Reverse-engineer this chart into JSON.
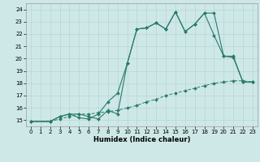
{
  "xlabel": "Humidex (Indice chaleur)",
  "bg_color": "#cee8e8",
  "grid_color": "#b8d4d4",
  "line_color": "#2a7a6a",
  "xlim": [
    -0.5,
    23.5
  ],
  "ylim": [
    14.5,
    24.5
  ],
  "xticks": [
    0,
    1,
    2,
    3,
    4,
    5,
    6,
    7,
    8,
    9,
    10,
    11,
    12,
    13,
    14,
    15,
    16,
    17,
    18,
    19,
    20,
    21,
    22,
    23
  ],
  "yticks": [
    15,
    16,
    17,
    18,
    19,
    20,
    21,
    22,
    23,
    24
  ],
  "line1_x": [
    0,
    2,
    3,
    4,
    5,
    6,
    7,
    8,
    9,
    10,
    11,
    12,
    13,
    14,
    15,
    16,
    17,
    18,
    19,
    20,
    21,
    22,
    23
  ],
  "line1_y": [
    14.9,
    14.9,
    15.3,
    15.5,
    15.2,
    15.1,
    15.5,
    16.5,
    17.2,
    19.6,
    22.4,
    22.5,
    22.9,
    22.4,
    23.8,
    22.2,
    22.8,
    23.7,
    23.7,
    20.2,
    20.2,
    18.1,
    18.1
  ],
  "line2_x": [
    0,
    2,
    3,
    4,
    5,
    6,
    7,
    8,
    9,
    10,
    11,
    12,
    13,
    14,
    15,
    16,
    17,
    18,
    19,
    20,
    21,
    22,
    23
  ],
  "line2_y": [
    14.9,
    14.9,
    15.3,
    15.5,
    15.5,
    15.3,
    15.1,
    15.8,
    15.5,
    19.6,
    22.4,
    22.5,
    22.9,
    22.4,
    23.8,
    22.2,
    22.8,
    23.7,
    21.9,
    20.2,
    20.1,
    18.1,
    18.1
  ],
  "line3_x": [
    0,
    2,
    3,
    4,
    5,
    6,
    7,
    8,
    9,
    10,
    11,
    12,
    13,
    14,
    15,
    16,
    17,
    18,
    19,
    20,
    21,
    22,
    23
  ],
  "line3_y": [
    14.9,
    14.9,
    15.1,
    15.3,
    15.5,
    15.5,
    15.6,
    15.7,
    15.8,
    16.0,
    16.2,
    16.5,
    16.7,
    17.0,
    17.2,
    17.4,
    17.6,
    17.8,
    18.0,
    18.1,
    18.2,
    18.2,
    18.1
  ]
}
